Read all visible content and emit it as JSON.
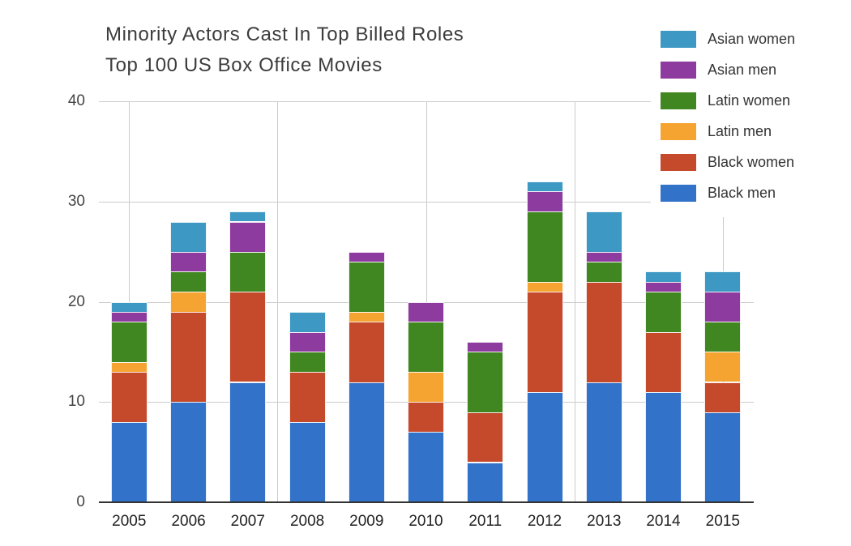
{
  "chart": {
    "title_line1": "Minority Actors Cast In Top Billed Roles",
    "title_line2": "Top 100 US Box Office Movies"
  },
  "chart_data": {
    "type": "bar",
    "stacked": true,
    "title": "Minority Actors Cast In Top Billed Roles",
    "subtitle": "Top 100 US Box Office Movies",
    "xlabel": "",
    "ylabel": "",
    "categories": [
      "2005",
      "2006",
      "2007",
      "2008",
      "2009",
      "2010",
      "2011",
      "2012",
      "2013",
      "2014",
      "2015"
    ],
    "series": [
      {
        "name": "Black men",
        "color": "#3272c8",
        "values": [
          8,
          10,
          12,
          8,
          12,
          7,
          4,
          11,
          12,
          11,
          9
        ]
      },
      {
        "name": "Black women",
        "color": "#c44a2b",
        "values": [
          5,
          9,
          9,
          5,
          6,
          3,
          5,
          10,
          10,
          6,
          3
        ]
      },
      {
        "name": "Latin men",
        "color": "#f5a431",
        "values": [
          1,
          2,
          0,
          0,
          1,
          3,
          0,
          1,
          0,
          0,
          3
        ]
      },
      {
        "name": "Latin women",
        "color": "#418721",
        "values": [
          4,
          2,
          4,
          2,
          5,
          5,
          6,
          7,
          2,
          4,
          3
        ]
      },
      {
        "name": "Asian men",
        "color": "#8d3b9e",
        "values": [
          1,
          2,
          3,
          2,
          1,
          2,
          1,
          2,
          1,
          1,
          3
        ]
      },
      {
        "name": "Asian women",
        "color": "#3d98c4",
        "values": [
          1,
          3,
          1,
          2,
          0,
          0,
          0,
          1,
          4,
          1,
          2
        ]
      }
    ],
    "totals": [
      20,
      28,
      29,
      19,
      25,
      20,
      16,
      32,
      29,
      23,
      23
    ],
    "legend_order": [
      "Asian women",
      "Asian men",
      "Latin women",
      "Latin men",
      "Black women",
      "Black men"
    ],
    "legend_position": "top-right",
    "ylim": [
      0,
      40
    ],
    "yticks": [
      0,
      10,
      20,
      30,
      40
    ],
    "x_gridlines_at_category_index": [
      0,
      2.5,
      5,
      7.5,
      10
    ],
    "grid": "on"
  },
  "colors": {
    "grid": "#cccccc",
    "axis": "#333333",
    "y_tick_label": "#444444",
    "x_tick_label": "#222222",
    "title": "#3c3c3c",
    "background": "#ffffff"
  }
}
